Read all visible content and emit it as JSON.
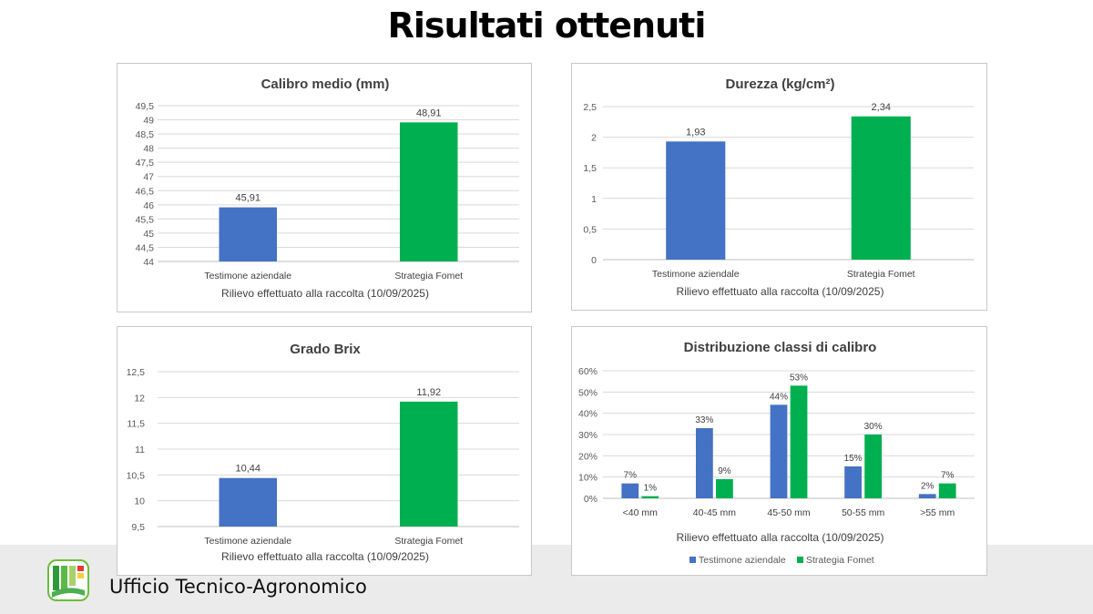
{
  "slide": {
    "title": "Risultati ottenuti",
    "footer_text": "Ufficio Tecnico-Agronomico"
  },
  "colors": {
    "blue": "#4472c4",
    "green": "#00b050"
  },
  "chart_data": [
    {
      "type": "bar",
      "title": "Calibro medio (mm)",
      "xlabel": "Rilievo effettuato alla raccolta (10/09/2025)",
      "categories": [
        "Testimone aziendale",
        "Strategia Fomet"
      ],
      "values": [
        45.91,
        48.91
      ],
      "value_labels": [
        "45,91",
        "48,91"
      ],
      "bar_colors": [
        "#4472c4",
        "#00b050"
      ],
      "ylim": [
        44,
        49.5
      ],
      "yticks": [
        44,
        44.5,
        45,
        45.5,
        46,
        46.5,
        47,
        47.5,
        48,
        48.5,
        49,
        49.5
      ],
      "ytick_labels": [
        "44",
        "44,5",
        "45",
        "45,5",
        "46",
        "46,5",
        "47",
        "47,5",
        "48",
        "48,5",
        "49",
        "49,5"
      ],
      "grid": true
    },
    {
      "type": "bar",
      "title": "Durezza (kg/cm²)",
      "xlabel": "Rilievo effettuato alla raccolta (10/09/2025)",
      "categories": [
        "Testimone aziendale",
        "Strategia Fomet"
      ],
      "values": [
        1.93,
        2.34
      ],
      "value_labels": [
        "1,93",
        "2,34"
      ],
      "bar_colors": [
        "#4472c4",
        "#00b050"
      ],
      "ylim": [
        0,
        2.5
      ],
      "yticks": [
        0,
        0.5,
        1,
        1.5,
        2,
        2.5
      ],
      "ytick_labels": [
        "0",
        "0,5",
        "1",
        "1,5",
        "2",
        "2,5"
      ],
      "grid": true
    },
    {
      "type": "bar",
      "title": "Grado Brix",
      "xlabel": "Rilievo effettuato alla raccolta (10/09/2025)",
      "categories": [
        "Testimone aziendale",
        "Strategia Fomet"
      ],
      "values": [
        10.44,
        11.92
      ],
      "value_labels": [
        "10,44",
        "11,92"
      ],
      "bar_colors": [
        "#4472c4",
        "#00b050"
      ],
      "ylim": [
        9.5,
        12.5
      ],
      "yticks": [
        9.5,
        10,
        10.5,
        11,
        11.5,
        12,
        12.5
      ],
      "ytick_labels": [
        "9,5",
        "10",
        "10,5",
        "11",
        "11,5",
        "12",
        "12,5"
      ],
      "grid": true
    },
    {
      "type": "bar",
      "title": "Distribuzione classi di calibro",
      "xlabel": "Rilievo effettuato alla raccolta (10/09/2025)",
      "categories": [
        "<40 mm",
        "40-45 mm",
        "45-50 mm",
        "50-55 mm",
        ">55 mm"
      ],
      "series": [
        {
          "name": "Testimone aziendale",
          "values": [
            7,
            33,
            44,
            15,
            2
          ],
          "labels": [
            "7%",
            "33%",
            "44%",
            "15%",
            "2%"
          ],
          "color": "#4472c4"
        },
        {
          "name": "Strategia Fomet",
          "values": [
            1,
            9,
            53,
            30,
            7
          ],
          "labels": [
            "1%",
            "9%",
            "53%",
            "30%",
            "7%"
          ],
          "color": "#00b050"
        }
      ],
      "ylim": [
        0,
        60
      ],
      "yticks": [
        0,
        10,
        20,
        30,
        40,
        50,
        60
      ],
      "ytick_labels": [
        "0%",
        "10%",
        "20%",
        "30%",
        "40%",
        "50%",
        "60%"
      ],
      "legend": "bottom",
      "grid": true
    }
  ]
}
